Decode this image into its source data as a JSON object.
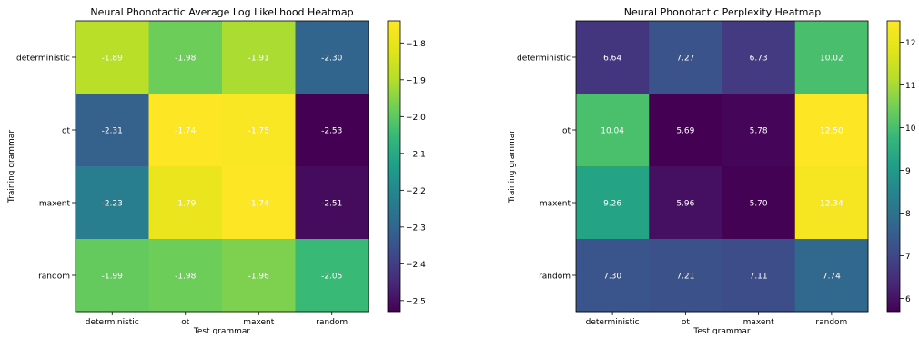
{
  "chart_data": [
    {
      "type": "heatmap",
      "title": "Neural Phonotactic Average Log Likelihood Heatmap",
      "xlabel": "Test grammar",
      "ylabel": "Training grammar",
      "x_categories": [
        "deterministic",
        "ot",
        "maxent",
        "random"
      ],
      "y_categories": [
        "deterministic",
        "ot",
        "maxent",
        "random"
      ],
      "values": [
        [
          -1.89,
          -1.98,
          -1.91,
          -2.3
        ],
        [
          -2.31,
          -1.74,
          -1.75,
          -2.53
        ],
        [
          -2.23,
          -1.79,
          -1.74,
          -2.51
        ],
        [
          -1.99,
          -1.98,
          -1.96,
          -2.05
        ]
      ],
      "value_labels": [
        [
          "-1.89",
          "-1.98",
          "-1.91",
          "-2.30"
        ],
        [
          "-2.31",
          "-1.74",
          "-1.75",
          "-2.53"
        ],
        [
          "-2.23",
          "-1.79",
          "-1.74",
          "-2.51"
        ],
        [
          "-1.99",
          "-1.98",
          "-1.96",
          "-2.05"
        ]
      ],
      "colormap": "viridis",
      "color_range": [
        -2.53,
        -1.74
      ],
      "colorbar_ticks": [
        -1.8,
        -1.9,
        -2.0,
        -2.1,
        -2.2,
        -2.3,
        -2.4,
        -2.5
      ],
      "colorbar_tick_labels": [
        "−1.8",
        "−1.9",
        "−2.0",
        "−2.1",
        "−2.2",
        "−2.3",
        "−2.4",
        "−2.5"
      ],
      "grid": false
    },
    {
      "type": "heatmap",
      "title": "Neural Phonotactic Perplexity Heatmap",
      "xlabel": "Test grammar",
      "ylabel": "Training grammar",
      "x_categories": [
        "deterministic",
        "ot",
        "maxent",
        "random"
      ],
      "y_categories": [
        "deterministic",
        "ot",
        "maxent",
        "random"
      ],
      "values": [
        [
          6.64,
          7.27,
          6.73,
          10.02
        ],
        [
          10.04,
          5.69,
          5.78,
          12.5
        ],
        [
          9.26,
          5.96,
          5.7,
          12.34
        ],
        [
          7.3,
          7.21,
          7.11,
          7.74
        ]
      ],
      "value_labels": [
        [
          "6.64",
          "7.27",
          "6.73",
          "10.02"
        ],
        [
          "10.04",
          "5.69",
          "5.78",
          "12.50"
        ],
        [
          "9.26",
          "5.96",
          "5.70",
          "12.34"
        ],
        [
          "7.30",
          "7.21",
          "7.11",
          "7.74"
        ]
      ],
      "colormap": "viridis",
      "color_range": [
        5.69,
        12.5
      ],
      "colorbar_ticks": [
        6,
        7,
        8,
        9,
        10,
        11,
        12
      ],
      "colorbar_tick_labels": [
        "6",
        "7",
        "8",
        "9",
        "10",
        "11",
        "12"
      ],
      "grid": false
    }
  ]
}
